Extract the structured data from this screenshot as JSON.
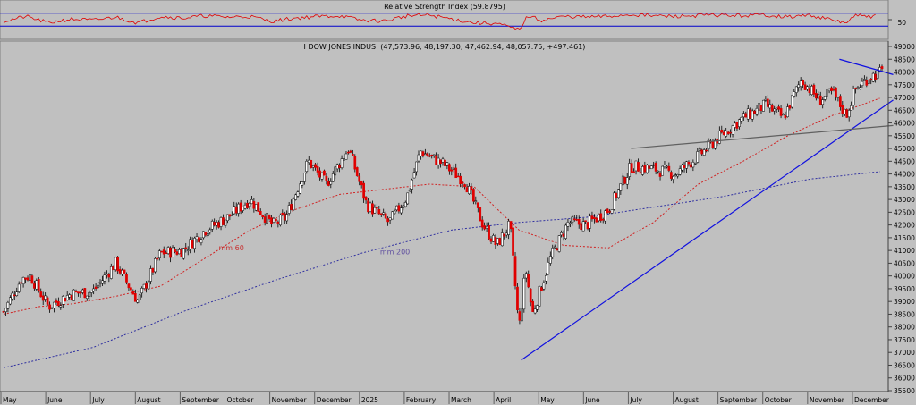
{
  "rsi_panel": {
    "title": "Relative Strength Index (59.8795)",
    "y_tick": "50",
    "ylim": [
      0,
      100
    ],
    "levels": [
      70,
      30
    ],
    "colors": {
      "line": "#e00000",
      "levels": "#0000cc"
    }
  },
  "price_panel": {
    "title": "I DOW JONES INDUS. (47,573.96, 48,197.30, 47,462.94, 48,057.75, +497.461)"
  },
  "chart_data": {
    "type": "candlestick",
    "title": "I DOW JONES INDUS. (47,573.96, 48,197.30, 47,462.94, 48,057.75, +497.461)",
    "ylim": [
      35500,
      49000
    ],
    "y_ticks": [
      35500,
      36000,
      36500,
      37000,
      37500,
      38000,
      38500,
      39000,
      39500,
      40000,
      40500,
      41000,
      41500,
      42000,
      42500,
      43000,
      43500,
      44000,
      44500,
      45000,
      45500,
      46000,
      46500,
      47000,
      47500,
      48000,
      48500,
      49000
    ],
    "x_labels": [
      "May",
      "June",
      "July",
      "August",
      "September",
      "October",
      "November",
      "December",
      "2025",
      "February",
      "March",
      "April",
      "May",
      "June",
      "July",
      "August",
      "September",
      "October",
      "November",
      "December"
    ],
    "grid": false,
    "price_path_monthly": [
      [
        0,
        38600
      ],
      [
        0.4,
        39900
      ],
      [
        0.6,
        40000
      ],
      [
        1.0,
        38800
      ],
      [
        1.5,
        39300
      ],
      [
        2.0,
        39400
      ],
      [
        2.5,
        40500
      ],
      [
        3.0,
        39000
      ],
      [
        3.5,
        40900
      ],
      [
        4.0,
        41000
      ],
      [
        4.5,
        41800
      ],
      [
        5.0,
        42300
      ],
      [
        5.5,
        43000
      ],
      [
        6.0,
        42000
      ],
      [
        6.3,
        42300
      ],
      [
        6.8,
        44500
      ],
      [
        7.2,
        43600
      ],
      [
        7.7,
        45000
      ],
      [
        8.1,
        42800
      ],
      [
        8.6,
        42100
      ],
      [
        9.0,
        43100
      ],
      [
        9.3,
        44900
      ],
      [
        9.8,
        44400
      ],
      [
        10.3,
        43700
      ],
      [
        10.7,
        42000
      ],
      [
        11.0,
        41200
      ],
      [
        11.3,
        42000
      ],
      [
        11.5,
        37900
      ],
      [
        11.65,
        40300
      ],
      [
        11.8,
        38500
      ],
      [
        12.2,
        40700
      ],
      [
        12.6,
        42100
      ],
      [
        13.0,
        42000
      ],
      [
        13.5,
        42600
      ],
      [
        14.0,
        44300
      ],
      [
        14.5,
        44200
      ],
      [
        15.0,
        44000
      ],
      [
        15.5,
        44700
      ],
      [
        16.0,
        45500
      ],
      [
        16.5,
        46200
      ],
      [
        17.0,
        46700
      ],
      [
        17.4,
        46200
      ],
      [
        17.8,
        47700
      ],
      [
        18.2,
        46900
      ],
      [
        18.5,
        47200
      ],
      [
        18.8,
        46300
      ],
      [
        19.0,
        47300
      ],
      [
        19.3,
        47800
      ],
      [
        19.6,
        48000
      ]
    ],
    "mm60_path": [
      [
        0,
        38500
      ],
      [
        0.8,
        38800
      ],
      [
        1.5,
        38900
      ],
      [
        2.5,
        39200
      ],
      [
        3.5,
        39600
      ],
      [
        4.5,
        40700
      ],
      [
        5.5,
        41800
      ],
      [
        6.5,
        42600
      ],
      [
        7.5,
        43200
      ],
      [
        8.5,
        43400
      ],
      [
        9.5,
        43600
      ],
      [
        10.5,
        43500
      ],
      [
        11.5,
        41800
      ],
      [
        12.5,
        41200
      ],
      [
        13.5,
        41100
      ],
      [
        14.5,
        42100
      ],
      [
        15.5,
        43600
      ],
      [
        16.5,
        44500
      ],
      [
        17.5,
        45500
      ],
      [
        18.5,
        46300
      ],
      [
        19.6,
        47000
      ]
    ],
    "mm200_path": [
      [
        0,
        36400
      ],
      [
        2.0,
        37200
      ],
      [
        4.0,
        38600
      ],
      [
        6.0,
        39800
      ],
      [
        8.0,
        40900
      ],
      [
        10.0,
        41800
      ],
      [
        11.5,
        42100
      ],
      [
        13.0,
        42300
      ],
      [
        14.5,
        42700
      ],
      [
        16.0,
        43100
      ],
      [
        18.0,
        43800
      ],
      [
        19.6,
        44100
      ]
    ],
    "trend_lines": [
      {
        "color": "#1010e0",
        "from": [
          11.55,
          36700
        ],
        "to": [
          19.85,
          46900
        ]
      },
      {
        "color": "#1010e0",
        "from": [
          18.65,
          48500
        ],
        "to": [
          19.85,
          47900
        ]
      },
      {
        "color": "#606060",
        "from": [
          14.0,
          45000
        ],
        "to": [
          19.85,
          45900
        ]
      }
    ],
    "rsi_path": [
      [
        0,
        45
      ],
      [
        0.5,
        60
      ],
      [
        1,
        40
      ],
      [
        1.5,
        52
      ],
      [
        2,
        48
      ],
      [
        2.5,
        58
      ],
      [
        3,
        40
      ],
      [
        3.5,
        60
      ],
      [
        4,
        55
      ],
      [
        4.5,
        62
      ],
      [
        5,
        58
      ],
      [
        5.5,
        60
      ],
      [
        6,
        45
      ],
      [
        6.5,
        55
      ],
      [
        7,
        60
      ],
      [
        7.5,
        62
      ],
      [
        8,
        48
      ],
      [
        8.5,
        46
      ],
      [
        9,
        62
      ],
      [
        9.5,
        64
      ],
      [
        10,
        52
      ],
      [
        10.5,
        40
      ],
      [
        11,
        38
      ],
      [
        11.5,
        18
      ],
      [
        11.7,
        62
      ],
      [
        12,
        48
      ],
      [
        12.5,
        60
      ],
      [
        13,
        58
      ],
      [
        13.5,
        60
      ],
      [
        14,
        66
      ],
      [
        14.5,
        62
      ],
      [
        15,
        60
      ],
      [
        15.5,
        63
      ],
      [
        16,
        64
      ],
      [
        16.5,
        62
      ],
      [
        17,
        65
      ],
      [
        17.5,
        58
      ],
      [
        18,
        64
      ],
      [
        18.5,
        48
      ],
      [
        18.8,
        40
      ],
      [
        19,
        62
      ],
      [
        19.5,
        60
      ]
    ],
    "annotations": [
      {
        "text": "mm 60",
        "at": [
          4.8,
          41000
        ],
        "color": "#c83030"
      },
      {
        "text": "mm 200",
        "at": [
          8.4,
          40850
        ],
        "color": "#6050a0"
      }
    ],
    "colors": {
      "up": "#ffffff",
      "down": "#e00000",
      "mm60": "#d02020",
      "mm200": "#3030a0"
    }
  }
}
